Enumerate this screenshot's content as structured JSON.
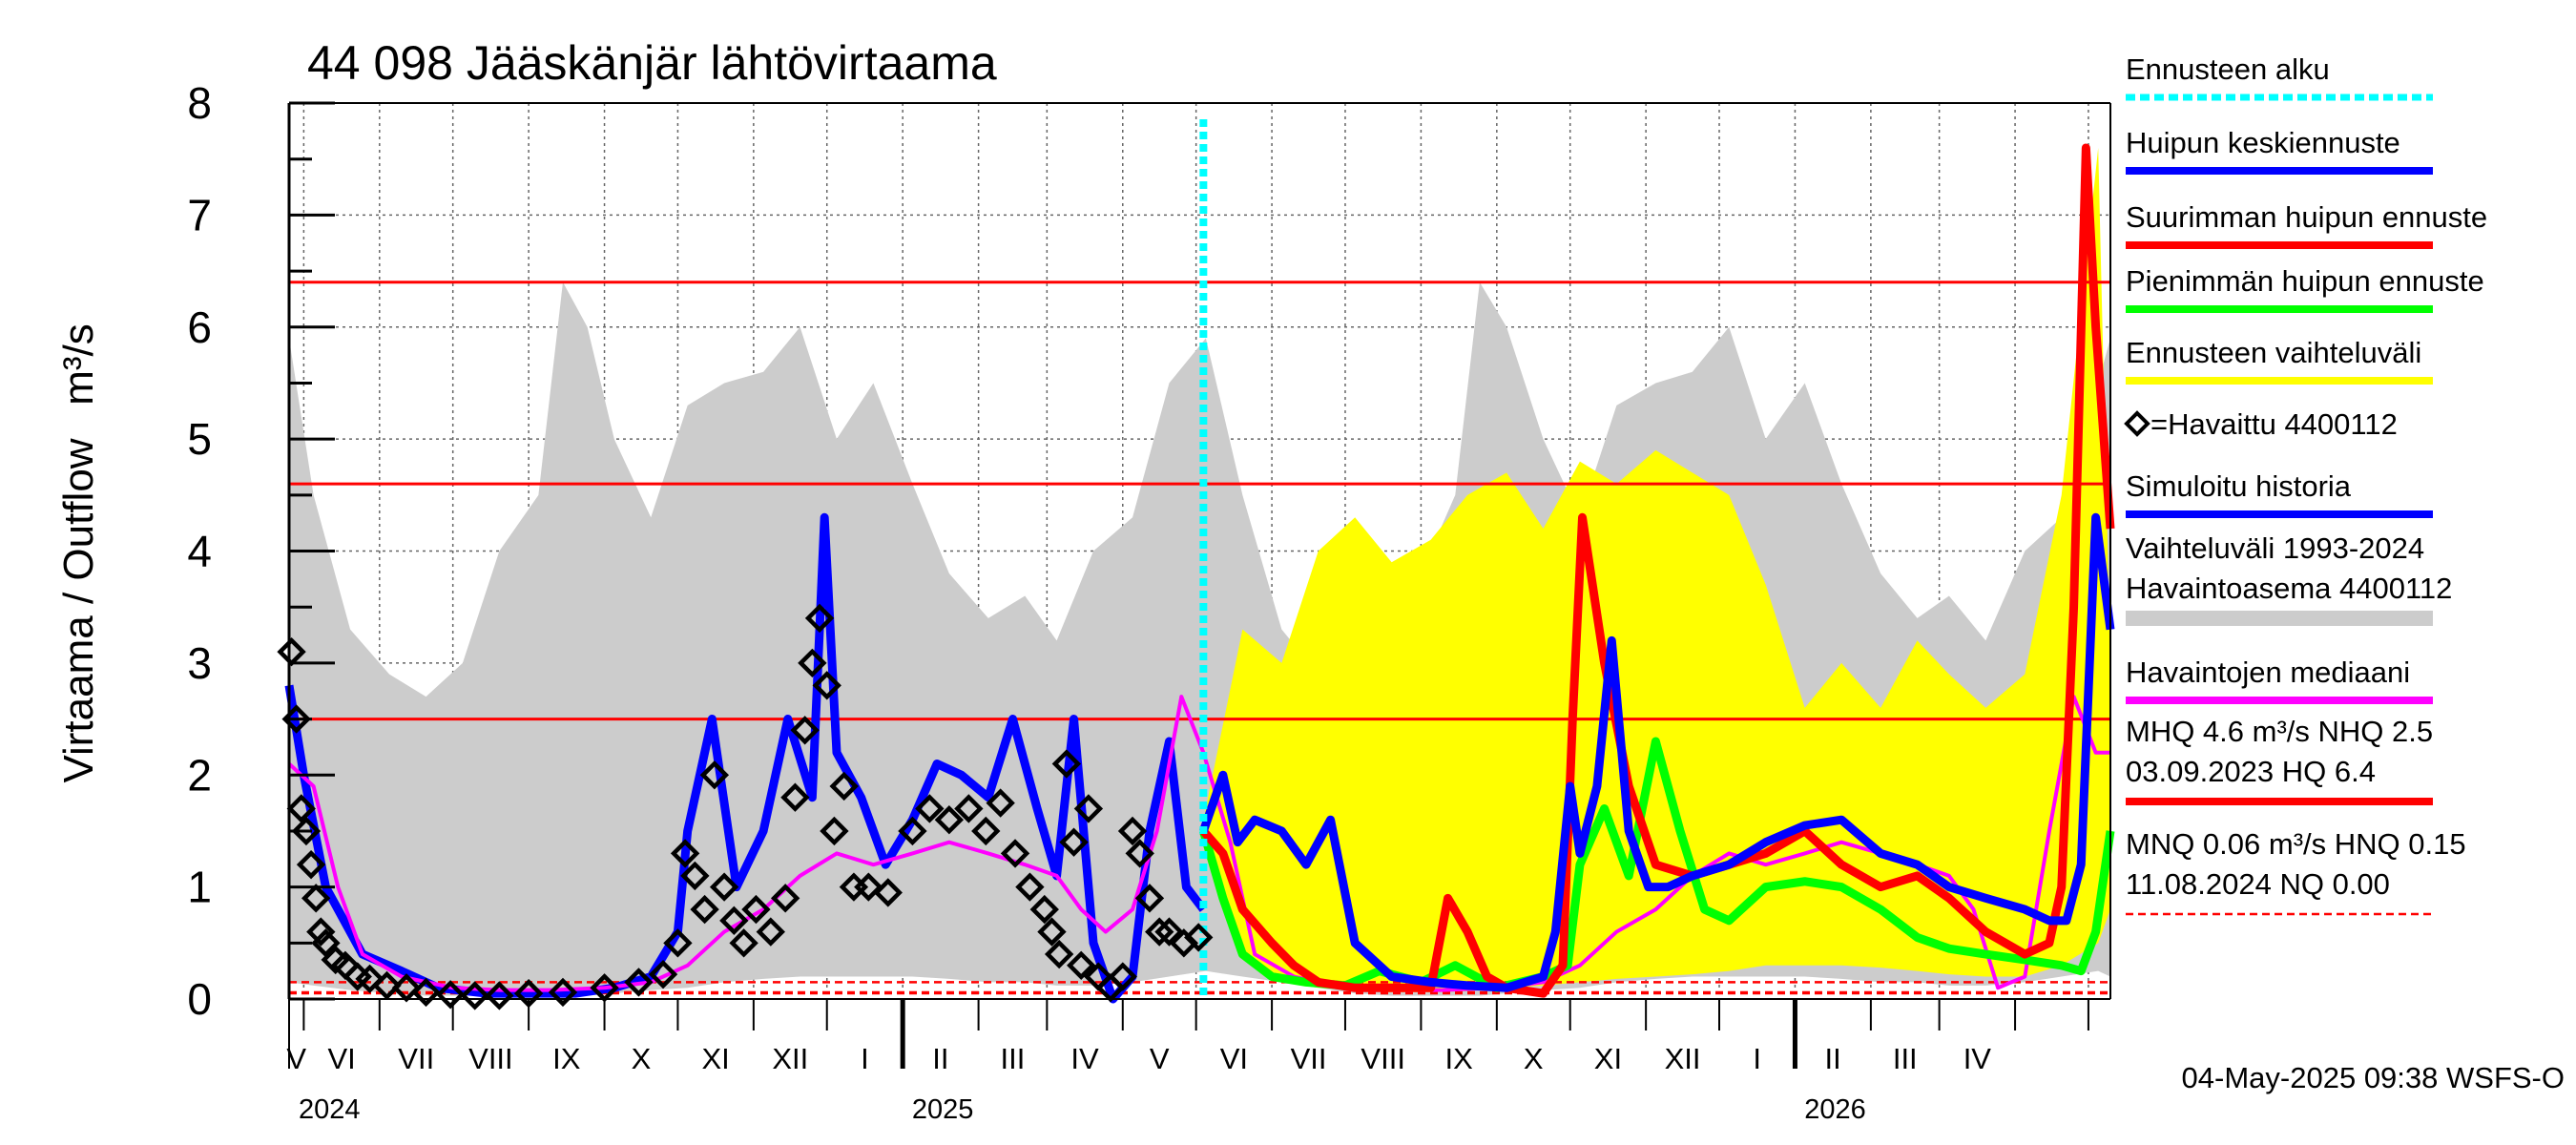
{
  "chart_data": {
    "type": "line",
    "title": "44 098 Jääskänjär lähtövirtaama",
    "ylabel_left": "Virtaama / Outflow",
    "ylabel_unit": "m³/s",
    "ylim": [
      0,
      8
    ],
    "yticks": [
      "0",
      "1",
      "2",
      "3",
      "4",
      "5",
      "6",
      "7",
      "8"
    ],
    "x_range": [
      "2024-04-25",
      "2026-05-10"
    ],
    "months": [
      "V",
      "VI",
      "VII",
      "VIII",
      "IX",
      "X",
      "XI",
      "XII",
      "I",
      "II",
      "III",
      "IV",
      "V",
      "VI",
      "VII",
      "VIII",
      "IX",
      "X",
      "XI",
      "XII",
      "I",
      "II",
      "III",
      "IV"
    ],
    "years": [
      "2024",
      "2025",
      "2026"
    ],
    "forecast_start": "2025-05-04",
    "timestamp": "04-May-2025 09:38 WSFS-O",
    "reference_lines": [
      {
        "name": "HQ",
        "value": 6.4,
        "color": "#ff0000",
        "style": "solid"
      },
      {
        "name": "MHQ",
        "value": 4.6,
        "color": "#ff0000",
        "style": "solid"
      },
      {
        "name": "NHQ",
        "value": 2.5,
        "color": "#ff0000",
        "style": "solid"
      },
      {
        "name": "HNQ",
        "value": 0.15,
        "color": "#ff0000",
        "style": "dashed"
      },
      {
        "name": "MNQ",
        "value": 0.06,
        "color": "#ff0000",
        "style": "dashed"
      },
      {
        "name": "NQ",
        "value": 0.0,
        "color": "#ff0000",
        "style": "dashed"
      }
    ],
    "legend": [
      {
        "label": "Ennusteen alku",
        "color": "#00ffff",
        "kind": "dotted"
      },
      {
        "label": "Huipun keskiennuste",
        "color": "#0000ff",
        "kind": "line"
      },
      {
        "label": "Suurimman huipun ennuste",
        "color": "#ff0000",
        "kind": "line"
      },
      {
        "label": "Pienimmän huipun ennuste",
        "color": "#00ff00",
        "kind": "line"
      },
      {
        "label": "Ennusteen vaihteluväli",
        "color": "#ffff00",
        "kind": "line"
      },
      {
        "label": "=Havaittu 4400112",
        "color": "#000000",
        "kind": "diamond"
      },
      {
        "label": "Simuloitu historia",
        "color": "#0000ff",
        "kind": "line"
      },
      {
        "label": "Vaihteluväli 1993-2024",
        "label2": " Havaintoasema 4400112",
        "color": "#cccccc",
        "kind": "band"
      },
      {
        "label": "Havaintojen mediaani",
        "color": "#ff00ff",
        "kind": "line"
      },
      {
        "label": "MHQ  4.6 m³/s NHQ  2.5",
        "label2": "03.09.2023 HQ  6.4",
        "color": "#ff0000",
        "kind": "line"
      },
      {
        "label": "MNQ 0.06 m³/s HNQ 0.15",
        "label2": "11.08.2024 NQ 0.00",
        "color": "#ff0000",
        "kind": "dashed"
      }
    ],
    "series": {
      "historical_range": {
        "name": "Vaihteluväli 1993-2024",
        "color": "#cccccc",
        "x": [
          "2024-04-25",
          "2024-05-05",
          "2024-05-20",
          "2024-06-05",
          "2024-06-20",
          "2024-07-05",
          "2024-07-20",
          "2024-08-05",
          "2024-08-15",
          "2024-08-25",
          "2024-09-05",
          "2024-09-20",
          "2024-10-05",
          "2024-10-20",
          "2024-11-05",
          "2024-11-20",
          "2024-12-05",
          "2024-12-20",
          "2025-01-05",
          "2025-01-20",
          "2025-02-05",
          "2025-02-20",
          "2025-03-05",
          "2025-03-20",
          "2025-04-05",
          "2025-04-20",
          "2025-05-05",
          "2025-05-20",
          "2025-06-05",
          "2025-06-20",
          "2025-07-05",
          "2025-07-20",
          "2025-08-05",
          "2025-08-15",
          "2025-08-25",
          "2025-09-05",
          "2025-09-20",
          "2025-10-05",
          "2025-10-20",
          "2025-11-05",
          "2025-11-20",
          "2025-12-05",
          "2025-12-20",
          "2026-01-05",
          "2026-01-20",
          "2026-02-05",
          "2026-02-20",
          "2026-03-05",
          "2026-03-20",
          "2026-04-05",
          "2026-04-20",
          "2026-05-05",
          "2026-05-10"
        ],
        "upper": [
          5.9,
          4.5,
          3.3,
          2.9,
          2.7,
          3.0,
          4.0,
          4.5,
          6.4,
          6.0,
          5.0,
          4.3,
          5.3,
          5.5,
          5.6,
          6.0,
          5.0,
          5.5,
          4.6,
          3.8,
          3.4,
          3.6,
          3.2,
          4.0,
          4.3,
          5.5,
          5.9,
          4.5,
          3.3,
          2.9,
          2.7,
          3.0,
          4.0,
          4.5,
          6.4,
          6.0,
          5.0,
          4.3,
          5.3,
          5.5,
          5.6,
          6.0,
          5.0,
          5.5,
          4.6,
          3.8,
          3.4,
          3.6,
          3.2,
          4.0,
          4.3,
          5.5,
          5.9
        ],
        "lower": [
          0.15,
          0.12,
          0.08,
          0.05,
          0.03,
          0.03,
          0.03,
          0.03,
          0.03,
          0.03,
          0.05,
          0.08,
          0.1,
          0.15,
          0.18,
          0.2,
          0.2,
          0.2,
          0.2,
          0.18,
          0.15,
          0.15,
          0.12,
          0.12,
          0.15,
          0.2,
          0.25,
          0.2,
          0.15,
          0.1,
          0.05,
          0.03,
          0.03,
          0.03,
          0.03,
          0.05,
          0.08,
          0.1,
          0.15,
          0.18,
          0.2,
          0.2,
          0.2,
          0.2,
          0.18,
          0.15,
          0.15,
          0.12,
          0.12,
          0.15,
          0.2,
          0.25,
          0.2
        ]
      },
      "forecast_range": {
        "name": "Ennusteen vaihteluväli",
        "color": "#ffff00",
        "x": [
          "2025-05-04",
          "2025-05-20",
          "2025-06-05",
          "2025-06-20",
          "2025-07-05",
          "2025-07-20",
          "2025-08-05",
          "2025-08-20",
          "2025-09-05",
          "2025-09-20",
          "2025-10-05",
          "2025-10-20",
          "2025-11-05",
          "2025-11-20",
          "2025-12-05",
          "2025-12-20",
          "2026-01-05",
          "2026-01-20",
          "2026-02-05",
          "2026-02-20",
          "2026-03-05",
          "2026-03-20",
          "2026-04-05",
          "2026-04-20",
          "2026-05-05",
          "2026-05-10"
        ],
        "upper": [
          1.6,
          3.3,
          3.0,
          4.0,
          4.3,
          3.9,
          4.1,
          4.5,
          4.7,
          4.2,
          4.8,
          4.6,
          4.9,
          4.7,
          4.5,
          3.7,
          2.6,
          3.0,
          2.6,
          3.2,
          2.9,
          2.6,
          2.9,
          4.5,
          7.6,
          3.0
        ],
        "lower": [
          1.4,
          0.35,
          0.15,
          0.1,
          0.08,
          0.06,
          0.06,
          0.07,
          0.1,
          0.12,
          0.15,
          0.18,
          0.2,
          0.22,
          0.25,
          0.3,
          0.3,
          0.3,
          0.28,
          0.25,
          0.22,
          0.2,
          0.2,
          0.3,
          0.5,
          0.8
        ]
      },
      "simulated_history": {
        "name": "Simuloitu historia",
        "color": "#0000ff",
        "x": [
          "2024-04-25",
          "2024-05-01",
          "2024-05-10",
          "2024-05-25",
          "2024-06-10",
          "2024-06-25",
          "2024-07-15",
          "2024-08-01",
          "2024-08-20",
          "2024-09-05",
          "2024-09-20",
          "2024-10-01",
          "2024-10-05",
          "2024-10-15",
          "2024-10-25",
          "2024-11-05",
          "2024-11-15",
          "2024-11-25",
          "2024-11-30",
          "2024-12-05",
          "2024-12-15",
          "2024-12-25",
          "2025-01-05",
          "2025-01-15",
          "2025-01-25",
          "2025-02-05",
          "2025-02-15",
          "2025-02-25",
          "2025-03-05",
          "2025-03-12",
          "2025-03-20",
          "2025-03-28",
          "2025-04-05",
          "2025-04-12",
          "2025-04-20",
          "2025-04-27",
          "2025-05-04"
        ],
        "values": [
          2.8,
          2.0,
          1.0,
          0.4,
          0.25,
          0.1,
          0.05,
          0.05,
          0.05,
          0.1,
          0.2,
          0.6,
          1.5,
          2.5,
          1.0,
          1.5,
          2.5,
          1.8,
          4.3,
          2.2,
          1.8,
          1.2,
          1.6,
          2.1,
          2.0,
          1.8,
          2.5,
          1.7,
          1.1,
          2.5,
          0.5,
          0.0,
          0.2,
          1.5,
          2.3,
          1.0,
          0.8
        ]
      },
      "observed": {
        "name": "Havaittu 4400112",
        "color": "#000000",
        "x": [
          "2024-04-26",
          "2024-04-28",
          "2024-04-30",
          "2024-05-02",
          "2024-05-04",
          "2024-05-06",
          "2024-05-08",
          "2024-05-10",
          "2024-05-14",
          "2024-05-18",
          "2024-05-23",
          "2024-05-28",
          "2024-06-04",
          "2024-06-12",
          "2024-06-20",
          "2024-06-30",
          "2024-07-10",
          "2024-07-20",
          "2024-08-01",
          "2024-08-15",
          "2024-09-01",
          "2024-09-15",
          "2024-09-25",
          "2024-10-01",
          "2024-10-04",
          "2024-10-08",
          "2024-10-12",
          "2024-10-16",
          "2024-10-20",
          "2024-10-24",
          "2024-10-28",
          "2024-11-02",
          "2024-11-08",
          "2024-11-14",
          "2024-11-18",
          "2024-11-22",
          "2024-11-25",
          "2024-11-28",
          "2024-12-01",
          "2024-12-04",
          "2024-12-08",
          "2024-12-12",
          "2024-12-18",
          "2024-12-26",
          "2025-01-05",
          "2025-01-12",
          "2025-01-20",
          "2025-01-28",
          "2025-02-04",
          "2025-02-10",
          "2025-02-16",
          "2025-02-22",
          "2025-02-28",
          "2025-03-03",
          "2025-03-06",
          "2025-03-09",
          "2025-03-12",
          "2025-03-15",
          "2025-03-18",
          "2025-03-22",
          "2025-03-27",
          "2025-04-01",
          "2025-04-05",
          "2025-04-08",
          "2025-04-12",
          "2025-04-16",
          "2025-04-20",
          "2025-04-26",
          "2025-05-02"
        ],
        "values": [
          3.1,
          2.5,
          1.7,
          1.5,
          1.2,
          0.9,
          0.6,
          0.5,
          0.35,
          0.3,
          0.2,
          0.18,
          0.12,
          0.1,
          0.06,
          0.04,
          0.03,
          0.03,
          0.05,
          0.06,
          0.1,
          0.15,
          0.22,
          0.5,
          1.3,
          1.1,
          0.8,
          2.0,
          1.0,
          0.7,
          0.5,
          0.8,
          0.6,
          0.9,
          1.8,
          2.4,
          3.0,
          3.4,
          2.8,
          1.5,
          1.9,
          1.0,
          1.0,
          0.95,
          1.5,
          1.7,
          1.6,
          1.7,
          1.5,
          1.75,
          1.3,
          1.0,
          0.8,
          0.6,
          0.4,
          2.1,
          1.4,
          0.3,
          1.7,
          0.2,
          0.1,
          0.2,
          1.5,
          1.3,
          0.9,
          0.6,
          0.6,
          0.5,
          0.55
        ]
      },
      "median": {
        "name": "Havaintojen mediaani",
        "color": "#ff00ff",
        "x": [
          "2024-04-25",
          "2024-05-05",
          "2024-05-15",
          "2024-05-25",
          "2024-06-10",
          "2024-07-01",
          "2024-07-20",
          "2024-08-10",
          "2024-09-01",
          "2024-09-20",
          "2024-10-05",
          "2024-10-20",
          "2024-11-05",
          "2024-11-20",
          "2024-12-05",
          "2024-12-20",
          "2025-01-05",
          "2025-01-20",
          "2025-02-05",
          "2025-02-20",
          "2025-03-05",
          "2025-03-15",
          "2025-03-25",
          "2025-04-05",
          "2025-04-15",
          "2025-04-25",
          "2025-05-04",
          "2025-05-15",
          "2025-05-25",
          "2025-06-10",
          "2025-07-01",
          "2025-07-20",
          "2025-08-10",
          "2025-09-01",
          "2025-09-20",
          "2025-10-05",
          "2025-10-20",
          "2025-11-05",
          "2025-11-20",
          "2025-12-05",
          "2025-12-20",
          "2026-01-05",
          "2026-01-20",
          "2026-02-05",
          "2026-02-20",
          "2026-03-05",
          "2026-03-15",
          "2026-03-25",
          "2026-04-05",
          "2026-04-15",
          "2026-04-25",
          "2026-05-04",
          "2026-05-10"
        ],
        "values": [
          2.1,
          1.9,
          1.0,
          0.4,
          0.2,
          0.1,
          0.08,
          0.08,
          0.1,
          0.15,
          0.3,
          0.6,
          0.8,
          1.1,
          1.3,
          1.2,
          1.3,
          1.4,
          1.3,
          1.2,
          1.1,
          0.8,
          0.6,
          0.8,
          1.5,
          2.7,
          2.2,
          1.4,
          0.4,
          0.2,
          0.1,
          0.08,
          0.08,
          0.1,
          0.15,
          0.3,
          0.6,
          0.8,
          1.1,
          1.3,
          1.2,
          1.3,
          1.4,
          1.3,
          1.2,
          1.1,
          0.8,
          0.1,
          0.2,
          1.5,
          2.7,
          2.2,
          2.2
        ]
      },
      "forecast_mean": {
        "name": "Huipun keskiennuste",
        "color": "#0000ff",
        "x": [
          "2025-05-04",
          "2025-05-12",
          "2025-05-18",
          "2025-05-25",
          "2025-06-05",
          "2025-06-15",
          "2025-06-25",
          "2025-07-05",
          "2025-07-20",
          "2025-08-05",
          "2025-08-20",
          "2025-09-05",
          "2025-09-20",
          "2025-09-25",
          "2025-10-01",
          "2025-10-05",
          "2025-10-12",
          "2025-10-18",
          "2025-10-25",
          "2025-11-02",
          "2025-11-10",
          "2025-11-20",
          "2025-12-05",
          "2025-12-20",
          "2026-01-05",
          "2026-01-20",
          "2026-02-05",
          "2026-02-20",
          "2026-03-05",
          "2026-03-20",
          "2026-04-05",
          "2026-04-15",
          "2026-04-22",
          "2026-04-28",
          "2026-05-04",
          "2026-05-10"
        ],
        "values": [
          1.5,
          2.0,
          1.4,
          1.6,
          1.5,
          1.2,
          1.6,
          0.5,
          0.2,
          0.15,
          0.12,
          0.1,
          0.2,
          0.6,
          1.9,
          1.3,
          1.9,
          3.2,
          1.5,
          1.0,
          1.0,
          1.1,
          1.2,
          1.4,
          1.55,
          1.6,
          1.3,
          1.2,
          1.0,
          0.9,
          0.8,
          0.7,
          0.7,
          1.2,
          4.3,
          3.3
        ]
      },
      "forecast_max": {
        "name": "Suurimman huipun ennuste",
        "color": "#ff0000",
        "x": [
          "2025-05-04",
          "2025-05-12",
          "2025-05-20",
          "2025-06-01",
          "2025-06-10",
          "2025-06-20",
          "2025-07-05",
          "2025-07-20",
          "2025-08-05",
          "2025-08-12",
          "2025-08-20",
          "2025-08-28",
          "2025-09-05",
          "2025-09-20",
          "2025-09-28",
          "2025-10-02",
          "2025-10-06",
          "2025-10-15",
          "2025-10-25",
          "2025-11-05",
          "2025-11-20",
          "2025-12-05",
          "2025-12-20",
          "2026-01-05",
          "2026-01-20",
          "2026-02-05",
          "2026-02-20",
          "2026-03-05",
          "2026-03-20",
          "2026-04-05",
          "2026-04-15",
          "2026-04-20",
          "2026-04-25",
          "2026-04-30",
          "2026-05-04",
          "2026-05-10"
        ],
        "values": [
          1.5,
          1.3,
          0.8,
          0.5,
          0.3,
          0.15,
          0.1,
          0.1,
          0.1,
          0.9,
          0.6,
          0.2,
          0.1,
          0.05,
          0.3,
          2.5,
          4.3,
          3.0,
          1.9,
          1.2,
          1.1,
          1.2,
          1.3,
          1.5,
          1.2,
          1.0,
          1.1,
          0.9,
          0.6,
          0.4,
          0.5,
          1.0,
          3.5,
          7.6,
          6.0,
          4.2
        ]
      },
      "forecast_min": {
        "name": "Pienimmän huipun ennuste",
        "color": "#00ff00",
        "x": [
          "2025-05-04",
          "2025-05-12",
          "2025-05-20",
          "2025-06-01",
          "2025-06-15",
          "2025-07-01",
          "2025-07-15",
          "2025-08-01",
          "2025-08-15",
          "2025-09-01",
          "2025-09-20",
          "2025-09-30",
          "2025-10-05",
          "2025-10-15",
          "2025-10-25",
          "2025-11-05",
          "2025-11-15",
          "2025-11-25",
          "2025-12-05",
          "2025-12-20",
          "2026-01-05",
          "2026-01-20",
          "2026-02-05",
          "2026-02-20",
          "2026-03-05",
          "2026-03-20",
          "2026-04-05",
          "2026-04-20",
          "2026-04-28",
          "2026-05-04",
          "2026-05-10"
        ],
        "values": [
          1.5,
          0.9,
          0.4,
          0.2,
          0.15,
          0.12,
          0.25,
          0.15,
          0.3,
          0.1,
          0.2,
          0.3,
          1.2,
          1.7,
          1.1,
          2.3,
          1.5,
          0.8,
          0.7,
          1.0,
          1.05,
          1.0,
          0.8,
          0.55,
          0.45,
          0.4,
          0.35,
          0.3,
          0.25,
          0.6,
          1.5
        ]
      }
    }
  }
}
